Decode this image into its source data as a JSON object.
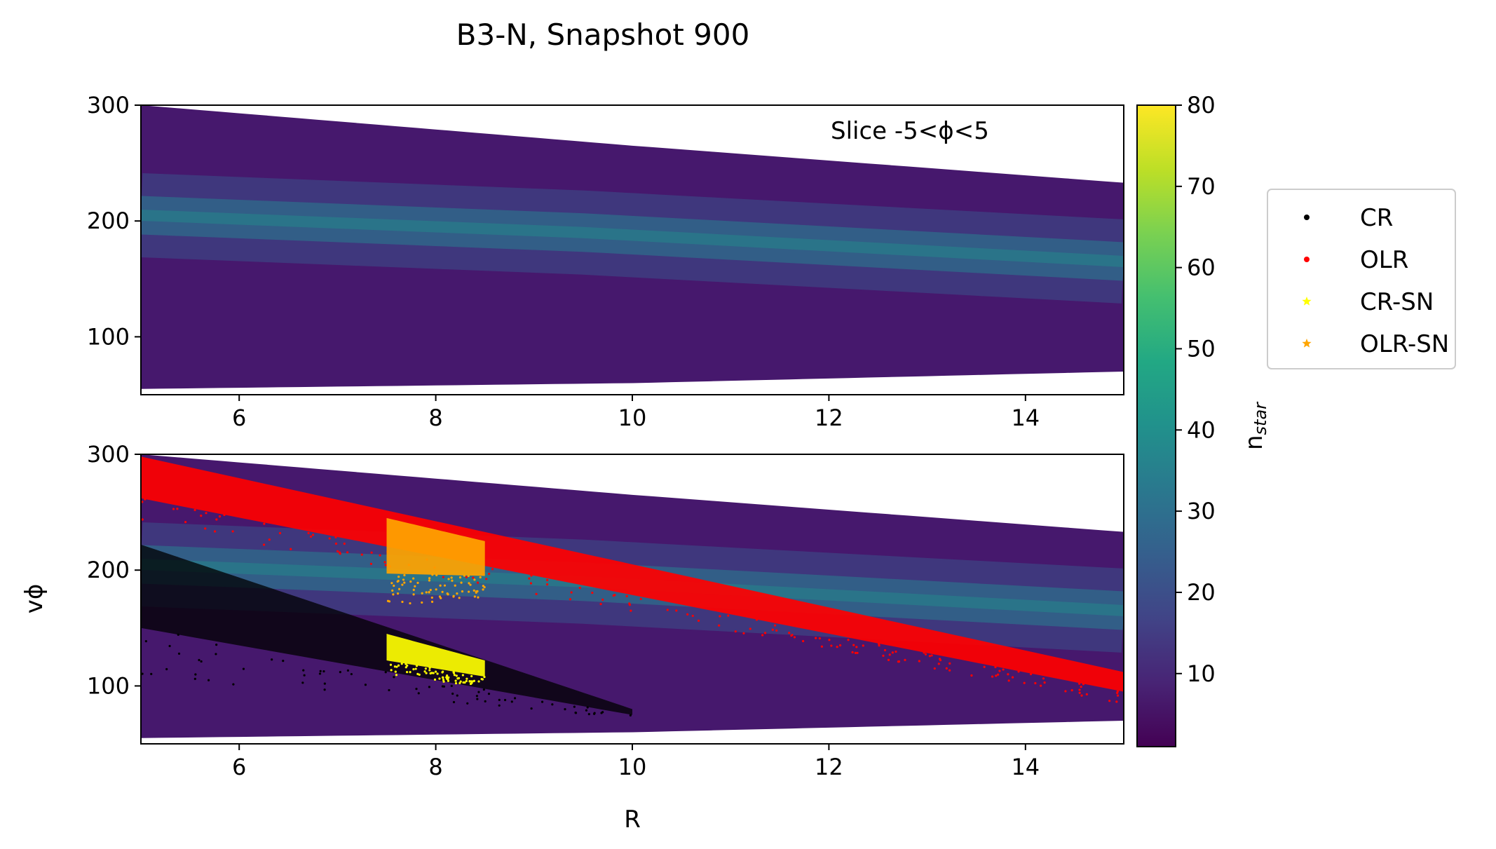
{
  "figure": {
    "title": "B3-N, Snapshot 900"
  },
  "chart_data": [
    {
      "type": "heatmap",
      "panel": "top",
      "annotation": "Slice -5<ϕ<5",
      "xlabel": "",
      "ylabel": "",
      "xlim": [
        5,
        15
      ],
      "ylim": [
        50,
        300
      ],
      "xticks": [
        6,
        8,
        10,
        12,
        14
      ],
      "yticks": [
        100,
        200,
        300
      ],
      "density_band": {
        "upper_edge": [
          [
            5,
            300
          ],
          [
            10,
            265
          ],
          [
            15,
            233
          ]
        ],
        "lower_edge": [
          [
            5,
            55
          ],
          [
            10,
            60
          ],
          [
            15,
            70
          ]
        ],
        "ridge": [
          [
            5,
            205
          ],
          [
            9.5,
            190
          ],
          [
            15,
            165
          ]
        ]
      },
      "colormap": "viridis"
    },
    {
      "type": "heatmap",
      "panel": "bottom",
      "xlabel": "R",
      "ylabel": "vϕ",
      "xlim": [
        5,
        15
      ],
      "ylim": [
        50,
        300
      ],
      "xticks": [
        6,
        8,
        10,
        12,
        14
      ],
      "yticks": [
        100,
        200,
        300
      ],
      "density_band": {
        "upper_edge": [
          [
            5,
            300
          ],
          [
            10,
            265
          ],
          [
            15,
            233
          ]
        ],
        "lower_edge": [
          [
            5,
            55
          ],
          [
            10,
            60
          ],
          [
            15,
            70
          ]
        ],
        "ridge": [
          [
            5,
            205
          ],
          [
            9.5,
            190
          ],
          [
            15,
            165
          ]
        ]
      },
      "colormap": "viridis",
      "overlays": [
        {
          "name": "CR",
          "color": "#000000",
          "region": {
            "x": [
              5,
              10
            ],
            "top": [
              [
                5,
                222
              ],
              [
                10,
                80
              ]
            ],
            "bottom": [
              [
                5,
                150
              ],
              [
                10,
                75
              ]
            ]
          }
        },
        {
          "name": "OLR",
          "color": "#ff0000",
          "region": {
            "x": [
              5,
              15
            ],
            "top": [
              [
                5,
                298
              ],
              [
                15,
                112
              ]
            ],
            "bottom": [
              [
                5,
                262
              ],
              [
                15,
                95
              ]
            ]
          }
        },
        {
          "name": "CR-SN",
          "color": "#ffff00",
          "region": {
            "x": [
              7.5,
              8.5
            ],
            "top": [
              [
                7.5,
                145
              ],
              [
                8.5,
                122
              ]
            ],
            "bottom": [
              [
                7.5,
                122
              ],
              [
                8.5,
                108
              ]
            ]
          }
        },
        {
          "name": "OLR-SN",
          "color": "#ffa500",
          "region": {
            "x": [
              7.5,
              8.5
            ],
            "top": [
              [
                7.5,
                245
              ],
              [
                8.5,
                225
              ]
            ],
            "bottom": [
              [
                7.5,
                197
              ],
              [
                8.5,
                195
              ]
            ]
          }
        }
      ]
    }
  ],
  "colorbar": {
    "label_main": "n",
    "label_sub": "star",
    "min": 1,
    "max": 80,
    "ticks": [
      10,
      20,
      30,
      40,
      50,
      60,
      70,
      80
    ]
  },
  "legend": {
    "placement": "right",
    "entries": [
      {
        "label": "CR",
        "color": "#000000",
        "marker": "dot"
      },
      {
        "label": "OLR",
        "color": "#ff0000",
        "marker": "dot"
      },
      {
        "label": "CR-SN",
        "color": "#ffff00",
        "marker": "star"
      },
      {
        "label": "OLR-SN",
        "color": "#ffa500",
        "marker": "star"
      }
    ]
  }
}
